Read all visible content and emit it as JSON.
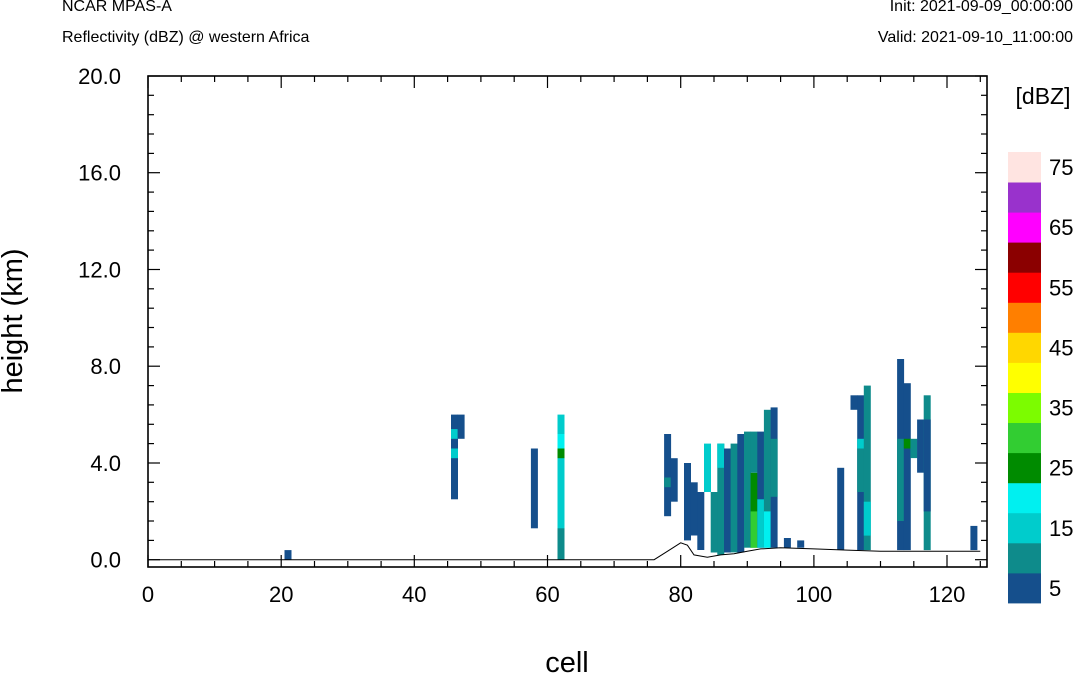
{
  "header": {
    "model": "NCAR MPAS-A",
    "field": "Reflectivity (dBZ) @ western Africa",
    "init": "Init: 2021-09-09_00:00:00",
    "valid": "Valid: 2021-09-10_11:00:00"
  },
  "chart_data": {
    "type": "heatmap",
    "title": "",
    "xlabel": "cell",
    "ylabel": "height (km)",
    "xlim": [
      0,
      126
    ],
    "ylim": [
      -0.3,
      20.0
    ],
    "xticks": [
      "0",
      "20",
      "40",
      "60",
      "80",
      "100",
      "120"
    ],
    "yticks": [
      "0.0",
      "4.0",
      "8.0",
      "12.0",
      "16.0",
      "20.0"
    ],
    "colorbar": {
      "unit": "[dBZ]",
      "labels": [
        "5",
        "15",
        "25",
        "35",
        "45",
        "55",
        "65",
        "75"
      ],
      "bins": [
        {
          "dbz": 5,
          "color": "#154f8c"
        },
        {
          "dbz": 10,
          "color": "#0e8b8b"
        },
        {
          "dbz": 15,
          "color": "#00cccc"
        },
        {
          "dbz": 20,
          "color": "#00f0f0"
        },
        {
          "dbz": 25,
          "color": "#008b00"
        },
        {
          "dbz": 30,
          "color": "#32cd32"
        },
        {
          "dbz": 35,
          "color": "#7cfc00"
        },
        {
          "dbz": 40,
          "color": "#ffff00"
        },
        {
          "dbz": 45,
          "color": "#ffd700"
        },
        {
          "dbz": 50,
          "color": "#ff7f00"
        },
        {
          "dbz": 55,
          "color": "#ff0000"
        },
        {
          "dbz": 60,
          "color": "#8b0000"
        },
        {
          "dbz": 65,
          "color": "#ff00ff"
        },
        {
          "dbz": 70,
          "color": "#9932cc"
        },
        {
          "dbz": 75,
          "color": "#ffe4e1"
        }
      ]
    },
    "terrain": [
      [
        0,
        0.0
      ],
      [
        76,
        0.0
      ],
      [
        78,
        0.35
      ],
      [
        80,
        0.7
      ],
      [
        81,
        0.6
      ],
      [
        82,
        0.2
      ],
      [
        84,
        0.1
      ],
      [
        86,
        0.2
      ],
      [
        88,
        0.25
      ],
      [
        90,
        0.35
      ],
      [
        92,
        0.45
      ],
      [
        95,
        0.5
      ],
      [
        100,
        0.45
      ],
      [
        105,
        0.4
      ],
      [
        110,
        0.35
      ],
      [
        115,
        0.35
      ],
      [
        120,
        0.35
      ],
      [
        125,
        0.35
      ]
    ],
    "cells": [
      {
        "x": 21,
        "y0": 0.0,
        "y1": 0.4,
        "dbz": 5
      },
      {
        "x": 46,
        "y0": 2.5,
        "y1": 6.0,
        "dbz": 5
      },
      {
        "x": 46,
        "y0": 4.2,
        "y1": 4.6,
        "dbz": 15
      },
      {
        "x": 46,
        "y0": 5.0,
        "y1": 5.4,
        "dbz": 15
      },
      {
        "x": 47,
        "y0": 5.0,
        "y1": 6.0,
        "dbz": 5
      },
      {
        "x": 58,
        "y0": 1.3,
        "y1": 4.6,
        "dbz": 5
      },
      {
        "x": 62,
        "y0": 0.0,
        "y1": 6.0,
        "dbz": 15
      },
      {
        "x": 62,
        "y0": 0.0,
        "y1": 1.3,
        "dbz": 10
      },
      {
        "x": 62,
        "y0": 4.2,
        "y1": 4.6,
        "dbz": 25
      },
      {
        "x": 62,
        "y0": 4.6,
        "y1": 5.2,
        "dbz": 20
      },
      {
        "x": 78,
        "y0": 1.8,
        "y1": 5.2,
        "dbz": 5
      },
      {
        "x": 78,
        "y0": 3.0,
        "y1": 3.4,
        "dbz": 10
      },
      {
        "x": 79,
        "y0": 2.4,
        "y1": 4.2,
        "dbz": 5
      },
      {
        "x": 81,
        "y0": 0.8,
        "y1": 4.0,
        "dbz": 5
      },
      {
        "x": 82,
        "y0": 1.0,
        "y1": 3.2,
        "dbz": 5
      },
      {
        "x": 83,
        "y0": 0.4,
        "y1": 2.8,
        "dbz": 5
      },
      {
        "x": 84,
        "y0": 2.8,
        "y1": 4.8,
        "dbz": 15
      },
      {
        "x": 85,
        "y0": 0.3,
        "y1": 2.8,
        "dbz": 10
      },
      {
        "x": 86,
        "y0": 0.2,
        "y1": 4.8,
        "dbz": 10
      },
      {
        "x": 86,
        "y0": 3.8,
        "y1": 4.8,
        "dbz": 15
      },
      {
        "x": 87,
        "y0": 0.3,
        "y1": 4.6,
        "dbz": 5
      },
      {
        "x": 88,
        "y0": 0.3,
        "y1": 4.8,
        "dbz": 10
      },
      {
        "x": 89,
        "y0": 0.3,
        "y1": 5.2,
        "dbz": 5
      },
      {
        "x": 90,
        "y0": 0.5,
        "y1": 5.3,
        "dbz": 10
      },
      {
        "x": 91,
        "y0": 0.5,
        "y1": 3.6,
        "dbz": 25
      },
      {
        "x": 91,
        "y0": 0.5,
        "y1": 2.0,
        "dbz": 30
      },
      {
        "x": 91,
        "y0": 3.6,
        "y1": 5.3,
        "dbz": 10
      },
      {
        "x": 92,
        "y0": 0.5,
        "y1": 5.3,
        "dbz": 5
      },
      {
        "x": 92,
        "y0": 0.5,
        "y1": 2.5,
        "dbz": 15
      },
      {
        "x": 93,
        "y0": 0.5,
        "y1": 6.2,
        "dbz": 10
      },
      {
        "x": 93,
        "y0": 0.5,
        "y1": 2.0,
        "dbz": 20
      },
      {
        "x": 94,
        "y0": 0.5,
        "y1": 6.3,
        "dbz": 5
      },
      {
        "x": 94,
        "y0": 2.6,
        "y1": 5.0,
        "dbz": 10
      },
      {
        "x": 96,
        "y0": 0.5,
        "y1": 0.9,
        "dbz": 5
      },
      {
        "x": 98,
        "y0": 0.5,
        "y1": 0.8,
        "dbz": 5
      },
      {
        "x": 104,
        "y0": 0.4,
        "y1": 3.8,
        "dbz": 5
      },
      {
        "x": 106,
        "y0": 6.2,
        "y1": 6.8,
        "dbz": 5
      },
      {
        "x": 107,
        "y0": 0.4,
        "y1": 6.8,
        "dbz": 5
      },
      {
        "x": 107,
        "y0": 2.8,
        "y1": 4.6,
        "dbz": 10
      },
      {
        "x": 107,
        "y0": 4.6,
        "y1": 5.0,
        "dbz": 15
      },
      {
        "x": 108,
        "y0": 0.4,
        "y1": 7.2,
        "dbz": 10
      },
      {
        "x": 108,
        "y0": 1.0,
        "y1": 2.4,
        "dbz": 15
      },
      {
        "x": 113,
        "y0": 0.4,
        "y1": 8.3,
        "dbz": 5
      },
      {
        "x": 113,
        "y0": 1.6,
        "y1": 5.0,
        "dbz": 10
      },
      {
        "x": 114,
        "y0": 0.4,
        "y1": 7.3,
        "dbz": 5
      },
      {
        "x": 114,
        "y0": 4.6,
        "y1": 5.0,
        "dbz": 25
      },
      {
        "x": 115,
        "y0": 4.2,
        "y1": 5.0,
        "dbz": 10
      },
      {
        "x": 116,
        "y0": 3.6,
        "y1": 5.8,
        "dbz": 5
      },
      {
        "x": 117,
        "y0": 0.4,
        "y1": 6.8,
        "dbz": 10
      },
      {
        "x": 117,
        "y0": 2.0,
        "y1": 5.8,
        "dbz": 5
      },
      {
        "x": 124,
        "y0": 0.4,
        "y1": 1.4,
        "dbz": 5
      }
    ]
  }
}
